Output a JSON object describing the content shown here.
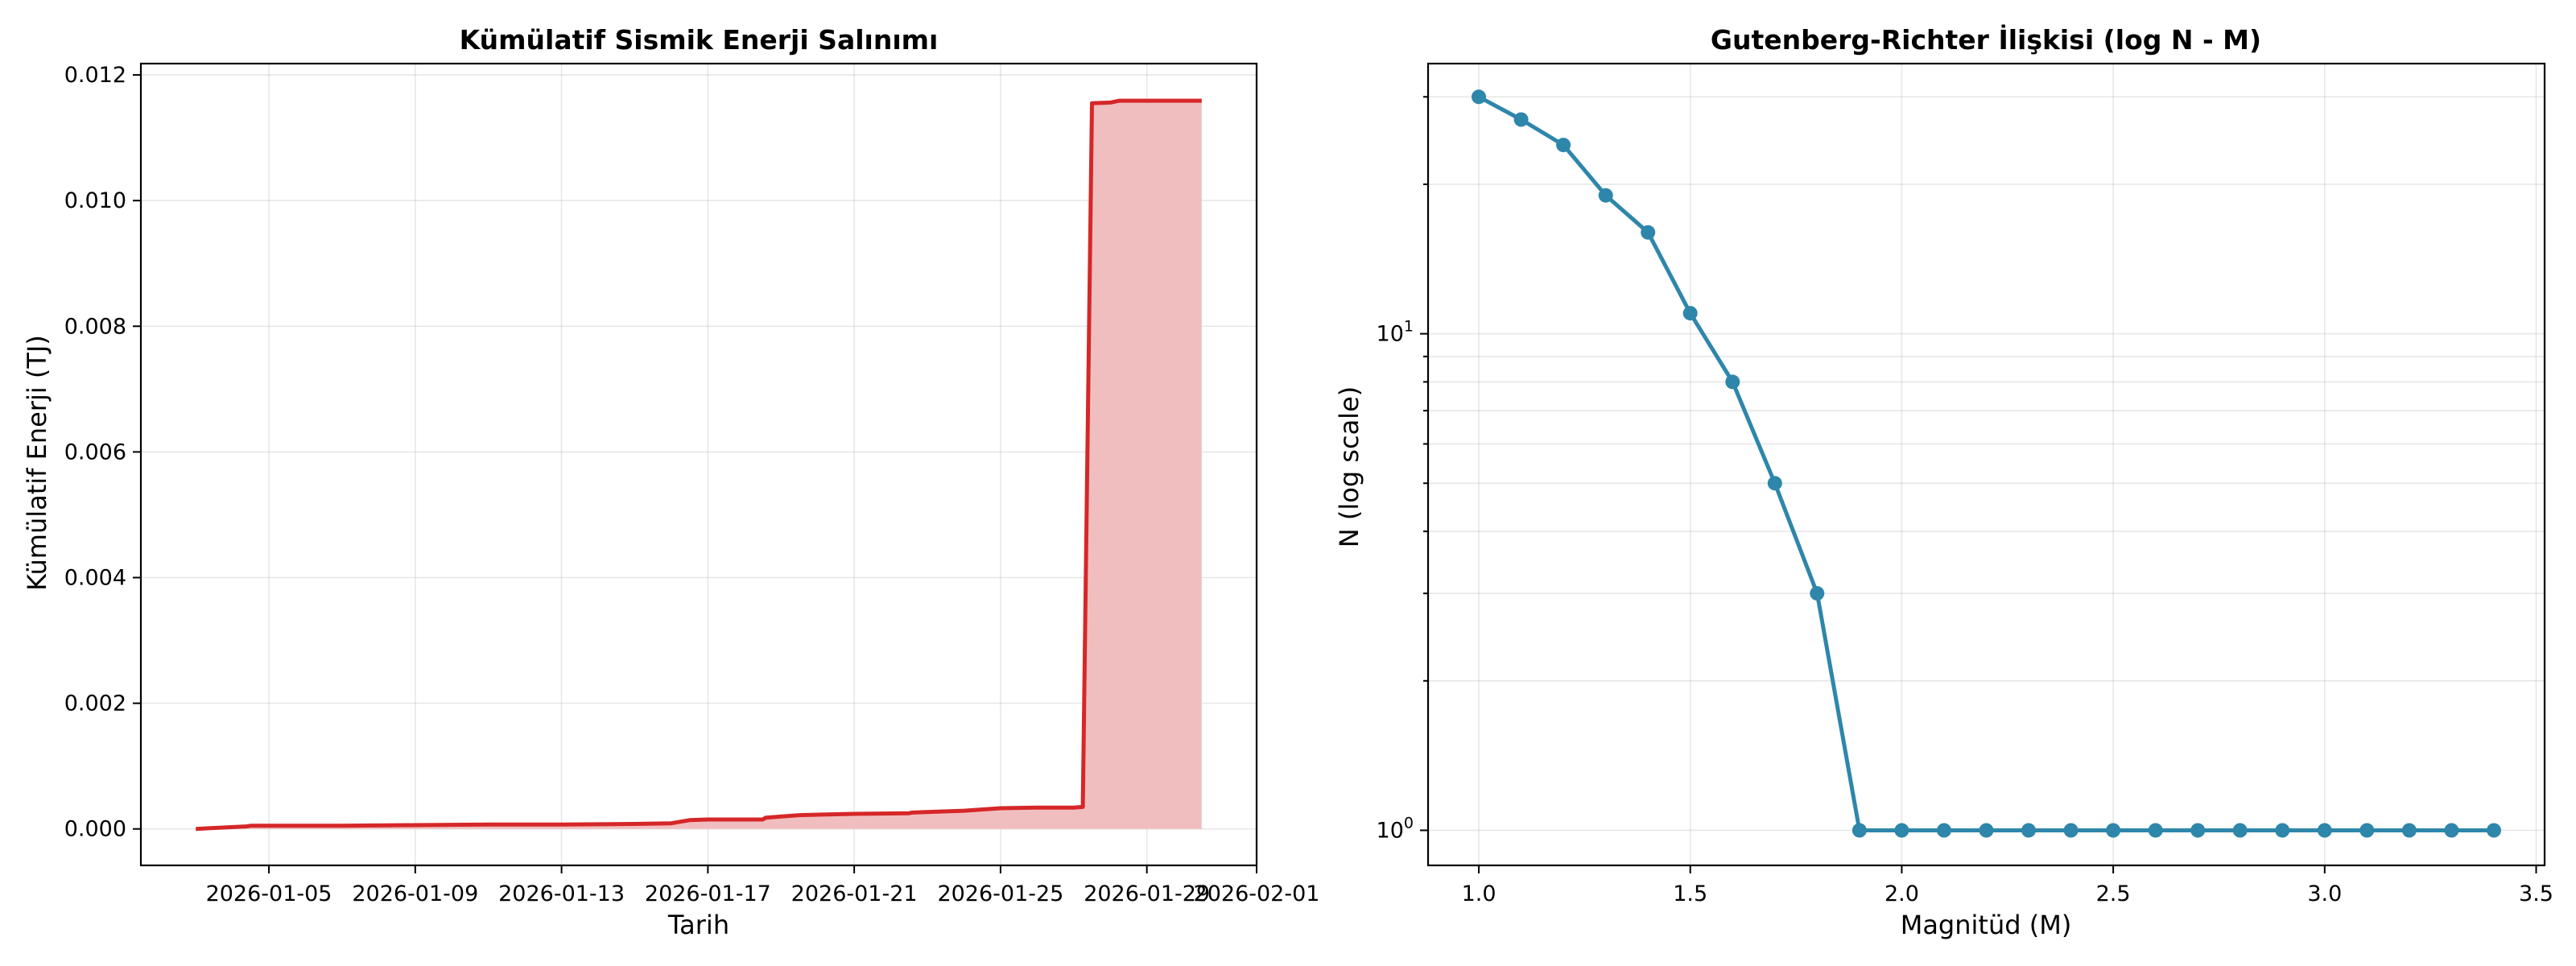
{
  "chart_data": [
    {
      "type": "area",
      "title": "Kümülatif Sismik Enerji Salınımı",
      "xlabel": "Tarih",
      "ylabel": "Kümülatif Enerji (TJ)",
      "x_tick_labels": [
        "2026-01-05",
        "2026-01-09",
        "2026-01-13",
        "2026-01-17",
        "2026-01-21",
        "2026-01-25",
        "2026-01-29",
        "2026-02-01"
      ],
      "y_tick_labels": [
        "0.000",
        "0.002",
        "0.004",
        "0.006",
        "0.008",
        "0.010",
        "0.012"
      ],
      "ylim": [
        -0.00058,
        0.01218
      ],
      "xlim": [
        "2026-01-01T12:00",
        "2026-02-01T00:00"
      ],
      "grid": true,
      "colors": {
        "line": "#d62728",
        "fill": "#f1bebf"
      },
      "series": [
        {
          "x": [
            "2026-01-03T00:00",
            "2026-01-04T09:00",
            "2026-01-04T12:00",
            "2026-01-05T00:00",
            "2026-01-07T00:00",
            "2026-01-09T00:00",
            "2026-01-11T00:00",
            "2026-01-13T00:00",
            "2026-01-15T00:00",
            "2026-01-16T00:00",
            "2026-01-16T12:00",
            "2026-01-17T00:00",
            "2026-01-18T12:00",
            "2026-01-18T14:00",
            "2026-01-19T12:00",
            "2026-01-21T00:00",
            "2026-01-22T12:00",
            "2026-01-22T14:00",
            "2026-01-24T00:00",
            "2026-01-25T00:00",
            "2026-01-26T00:00",
            "2026-01-27T00:00",
            "2026-01-27T06:00",
            "2026-01-27T12:00",
            "2026-01-28T00:00",
            "2026-01-28T06:00",
            "2026-01-29T00:00",
            "2026-01-30T00:00",
            "2026-01-30T12:00"
          ],
          "y": [
            0.0,
            4e-05,
            5e-05,
            5e-05,
            5e-05,
            6e-05,
            7e-05,
            7e-05,
            8e-05,
            9e-05,
            0.00014,
            0.00015,
            0.00015,
            0.00018,
            0.00022,
            0.00024,
            0.00025,
            0.00026,
            0.00029,
            0.00033,
            0.00034,
            0.00034,
            0.00035,
            0.01155,
            0.01156,
            0.01159,
            0.01159,
            0.01159,
            0.01159
          ]
        }
      ]
    },
    {
      "type": "line",
      "title": "Gutenberg-Richter İlişkisi (log N - M)",
      "xlabel": "Magnitüd (M)",
      "ylabel": "N (log scale)",
      "x_tick_labels": [
        "1.0",
        "1.5",
        "2.0",
        "2.5",
        "3.0",
        "3.5"
      ],
      "y_tick_labels": [
        "10^0",
        "10^1"
      ],
      "y_scale": "log",
      "ylim": [
        0.85,
        35
      ],
      "xlim": [
        0.88,
        3.52
      ],
      "grid": true,
      "colors": {
        "line": "#2e86ab"
      },
      "series": [
        {
          "x": [
            1.0,
            1.1,
            1.2,
            1.3,
            1.4,
            1.5,
            1.6,
            1.7,
            1.8,
            1.9,
            2.0,
            2.1,
            2.2,
            2.3,
            2.4,
            2.5,
            2.6,
            2.7,
            2.8,
            2.9,
            3.0,
            3.1,
            3.2,
            3.3,
            3.4
          ],
          "y": [
            30,
            27,
            24,
            19,
            16,
            11,
            8,
            5,
            3,
            1,
            1,
            1,
            1,
            1,
            1,
            1,
            1,
            1,
            1,
            1,
            1,
            1,
            1,
            1,
            1
          ]
        }
      ]
    }
  ]
}
